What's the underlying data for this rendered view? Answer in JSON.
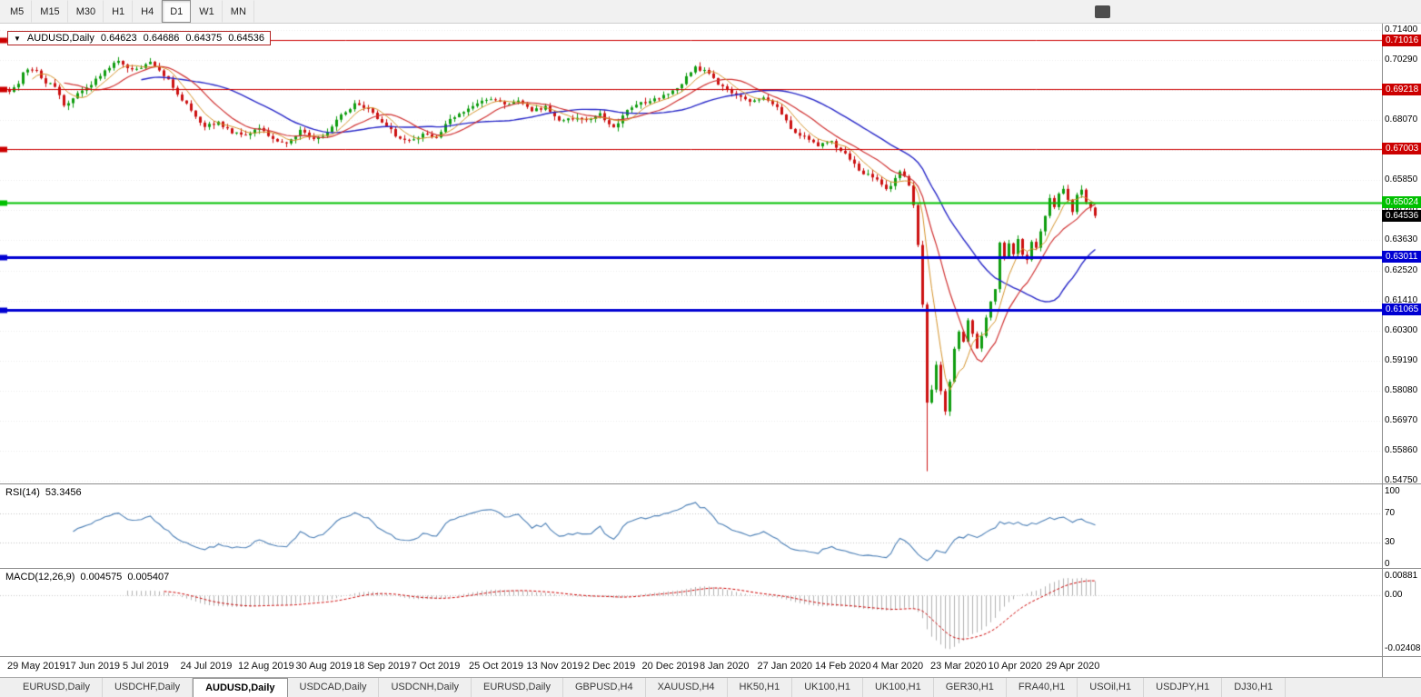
{
  "toolbar": {
    "timeframes": [
      {
        "label": "M5",
        "active": false
      },
      {
        "label": "M15",
        "active": false
      },
      {
        "label": "M30",
        "active": false
      },
      {
        "label": "H1",
        "active": false
      },
      {
        "label": "H4",
        "active": false
      },
      {
        "label": "D1",
        "active": true
      },
      {
        "label": "W1",
        "active": false
      },
      {
        "label": "MN",
        "active": false
      }
    ]
  },
  "chart": {
    "type": "candlestick",
    "symbol_info": {
      "symbol": "AUDUSD,Daily",
      "open": "0.64623",
      "high": "0.64686",
      "low": "0.64375",
      "close": "0.64536"
    },
    "colors": {
      "background": "#ffffff",
      "grid": "#ececec"
    },
    "candles": {
      "count": 240,
      "up": "#0f9d0f",
      "down": "#cc1111"
    },
    "y_axis": {
      "top_value": 0.714,
      "bottom_value": 0.5475,
      "labels": [
        "0.71400",
        "0.70290",
        "0.69180",
        "0.68070",
        "0.66960",
        "0.65850",
        "0.64740",
        "0.63630",
        "0.62520",
        "0.61410",
        "0.60300",
        "0.59190",
        "0.58080",
        "0.56970",
        "0.55860",
        "0.54750"
      ]
    },
    "hlines": [
      {
        "value": 0.71016,
        "label": "0.71016",
        "color": "#cc0000",
        "width": 1
      },
      {
        "value": 0.69218,
        "label": "0.69218",
        "color": "#cc0000",
        "width": 1
      },
      {
        "value": 0.67003,
        "label": "0.67003",
        "color": "#cc0000",
        "width": 1
      },
      {
        "value": 0.65024,
        "label": "0.65024",
        "color": "#00c000",
        "width": 2
      },
      {
        "value": 0.63011,
        "label": "0.63011",
        "color": "#0000d2",
        "width": 3
      },
      {
        "value": 0.61065,
        "label": "0.61065",
        "color": "#0000d2",
        "width": 3
      }
    ],
    "current_price": {
      "value": 0.64536,
      "label": "0.64536",
      "bg": "#000000"
    },
    "mas": [
      {
        "name": "ma-slow",
        "period": 30,
        "color": "#2828c8",
        "width": 1.4
      },
      {
        "name": "ma-mid",
        "period": 13,
        "color": "#d03232",
        "width": 1.2
      },
      {
        "name": "ma-fast",
        "period": 6,
        "color": "#d4922a",
        "width": 1
      }
    ],
    "price_path": [
      [
        0,
        0.6915
      ],
      [
        0.008,
        0.6945
      ],
      [
        0.013,
        0.698
      ],
      [
        0.02,
        0.7
      ],
      [
        0.025,
        0.6985
      ],
      [
        0.033,
        0.695
      ],
      [
        0.042,
        0.693
      ],
      [
        0.05,
        0.686
      ],
      [
        0.058,
        0.688
      ],
      [
        0.063,
        0.6905
      ],
      [
        0.075,
        0.6935
      ],
      [
        0.088,
        0.699
      ],
      [
        0.1,
        0.7025
      ],
      [
        0.108,
        0.7
      ],
      [
        0.117,
        0.699
      ],
      [
        0.13,
        0.702
      ],
      [
        0.142,
        0.6975
      ],
      [
        0.15,
        0.6935
      ],
      [
        0.155,
        0.6905
      ],
      [
        0.167,
        0.6845
      ],
      [
        0.18,
        0.678
      ],
      [
        0.192,
        0.68
      ],
      [
        0.205,
        0.676
      ],
      [
        0.218,
        0.6755
      ],
      [
        0.23,
        0.678
      ],
      [
        0.242,
        0.6735
      ],
      [
        0.255,
        0.672
      ],
      [
        0.268,
        0.677
      ],
      [
        0.28,
        0.673
      ],
      [
        0.293,
        0.6765
      ],
      [
        0.305,
        0.682
      ],
      [
        0.318,
        0.6865
      ],
      [
        0.33,
        0.6855
      ],
      [
        0.343,
        0.68
      ],
      [
        0.356,
        0.675
      ],
      [
        0.368,
        0.673
      ],
      [
        0.381,
        0.6755
      ],
      [
        0.393,
        0.674
      ],
      [
        0.406,
        0.6815
      ],
      [
        0.418,
        0.684
      ],
      [
        0.431,
        0.6875
      ],
      [
        0.444,
        0.689
      ],
      [
        0.456,
        0.686
      ],
      [
        0.469,
        0.6885
      ],
      [
        0.481,
        0.684
      ],
      [
        0.494,
        0.6855
      ],
      [
        0.506,
        0.68
      ],
      [
        0.519,
        0.6815
      ],
      [
        0.531,
        0.6805
      ],
      [
        0.544,
        0.683
      ],
      [
        0.556,
        0.6775
      ],
      [
        0.569,
        0.684
      ],
      [
        0.582,
        0.687
      ],
      [
        0.594,
        0.6885
      ],
      [
        0.607,
        0.69
      ],
      [
        0.619,
        0.6945
      ],
      [
        0.632,
        0.7
      ],
      [
        0.644,
        0.698
      ],
      [
        0.657,
        0.6925
      ],
      [
        0.669,
        0.69
      ],
      [
        0.682,
        0.6875
      ],
      [
        0.695,
        0.6895
      ],
      [
        0.707,
        0.685
      ],
      [
        0.72,
        0.6775
      ],
      [
        0.732,
        0.6745
      ],
      [
        0.745,
        0.6715
      ],
      [
        0.757,
        0.6725
      ],
      [
        0.77,
        0.6685
      ],
      [
        0.782,
        0.662
      ],
      [
        0.795,
        0.66
      ],
      [
        0.808,
        0.6545
      ],
      [
        0.82,
        0.6615
      ],
      [
        0.828,
        0.6575
      ],
      [
        0.833,
        0.648
      ],
      [
        0.837,
        0.634
      ],
      [
        0.841,
        0.612
      ],
      [
        0.845,
        0.576
      ],
      [
        0.849,
        0.58
      ],
      [
        0.854,
        0.592
      ],
      [
        0.858,
        0.58
      ],
      [
        0.862,
        0.5735
      ],
      [
        0.866,
        0.584
      ],
      [
        0.87,
        0.596
      ],
      [
        0.874,
        0.603
      ],
      [
        0.879,
        0.5985
      ],
      [
        0.883,
        0.607
      ],
      [
        0.887,
        0.602
      ],
      [
        0.891,
        0.5965
      ],
      [
        0.895,
        0.6005
      ],
      [
        0.9,
        0.608
      ],
      [
        0.904,
        0.6135
      ],
      [
        0.908,
        0.6185
      ],
      [
        0.912,
        0.635
      ],
      [
        0.916,
        0.63
      ],
      [
        0.92,
        0.6355
      ],
      [
        0.925,
        0.631
      ],
      [
        0.929,
        0.637
      ],
      [
        0.933,
        0.6315
      ],
      [
        0.937,
        0.629
      ],
      [
        0.941,
        0.636
      ],
      [
        0.945,
        0.6325
      ],
      [
        0.95,
        0.64
      ],
      [
        0.954,
        0.6455
      ],
      [
        0.958,
        0.6515
      ],
      [
        0.962,
        0.648
      ],
      [
        0.966,
        0.653
      ],
      [
        0.971,
        0.656
      ],
      [
        0.975,
        0.651
      ],
      [
        0.979,
        0.6465
      ],
      [
        0.983,
        0.653
      ],
      [
        0.987,
        0.6555
      ],
      [
        0.992,
        0.6505
      ],
      [
        1,
        0.6454
      ]
    ],
    "spike": {
      "t": 0.845,
      "low": 0.551
    }
  },
  "rsi": {
    "name": "RSI(14)",
    "value": "53.3456",
    "period": 14,
    "levels": [
      100,
      70,
      30,
      0
    ],
    "level_lines": [
      70,
      30
    ],
    "line_color": "#4a7eb5"
  },
  "macd": {
    "name": "MACD(12,26,9)",
    "value1": "0.004575",
    "value2": "0.005407",
    "axis": [
      "0.00881",
      "0.00",
      "-0.02408"
    ],
    "max": 0.00881,
    "min": -0.02408,
    "hist_color": "#b0b0b0",
    "signal_color": "#cc0000"
  },
  "dates": [
    "29 May 2019",
    "17 Jun 2019",
    "5 Jul 2019",
    "24 Jul 2019",
    "12 Aug 2019",
    "30 Aug 2019",
    "18 Sep 2019",
    "7 Oct 2019",
    "25 Oct 2019",
    "13 Nov 2019",
    "2 Dec 2019",
    "20 Dec 2019",
    "8 Jan 2020",
    "27 Jan 2020",
    "14 Feb 2020",
    "4 Mar 2020",
    "23 Mar 2020",
    "10 Apr 2020",
    "29 Apr 2020"
  ],
  "tabs": [
    {
      "label": "EURUSD,Daily",
      "active": false
    },
    {
      "label": "USDCHF,Daily",
      "active": false
    },
    {
      "label": "AUDUSD,Daily",
      "active": true
    },
    {
      "label": "USDCAD,Daily",
      "active": false
    },
    {
      "label": "USDCNH,Daily",
      "active": false
    },
    {
      "label": "EURUSD,Daily",
      "active": false
    },
    {
      "label": "GBPUSD,H4",
      "active": false
    },
    {
      "label": "XAUUSD,H4",
      "active": false
    },
    {
      "label": "HK50,H1",
      "active": false
    },
    {
      "label": "UK100,H1",
      "active": false
    },
    {
      "label": "UK100,H1",
      "active": false
    },
    {
      "label": "GER30,H1",
      "active": false
    },
    {
      "label": "FRA40,H1",
      "active": false
    },
    {
      "label": "USOil,H1",
      "active": false
    },
    {
      "label": "USDJPY,H1",
      "active": false
    },
    {
      "label": "DJ30,H1",
      "active": false
    }
  ]
}
